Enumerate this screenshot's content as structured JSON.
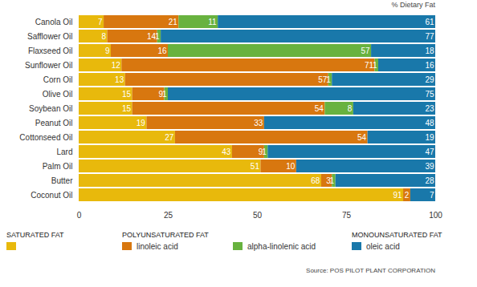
{
  "chart_data": {
    "type": "bar",
    "orientation": "horizontal",
    "stacked": true,
    "data_labels": true,
    "grid": false,
    "legend": "bottom",
    "subtitle": "% Dietary Fat",
    "caption": "Source: POS PILOT PLANT CORPORATION",
    "categories": [
      "Canola Oil",
      "Safflower Oil",
      "Flaxseed Oil",
      "Sunflower Oil",
      "Corn Oil",
      "Olive Oil",
      "Soybean Oil",
      "Peanut Oil",
      "Cottonseed Oil",
      "Lard",
      "Palm Oil",
      "Butter",
      "Coconut Oil"
    ],
    "series": [
      {
        "name": null,
        "group": "SATURATED FAT",
        "color": "#e8b90c",
        "values": [
          7,
          8,
          9,
          12,
          13,
          15,
          15,
          19,
          27,
          43,
          51,
          68,
          91
        ]
      },
      {
        "name": "linoleic acid",
        "group": "POLYUNSATURATED FAT",
        "color": "#d8770f",
        "values": [
          21,
          14,
          16,
          71,
          57,
          9,
          54,
          33,
          54,
          9,
          10,
          3,
          2
        ]
      },
      {
        "name": "alpha-linolenic acid",
        "group": null,
        "color": "#68b23f",
        "values": [
          11,
          1,
          57,
          1,
          1,
          1,
          8,
          null,
          null,
          1,
          null,
          1,
          null
        ]
      },
      {
        "name": "oleic acid",
        "group": "MONOUNSATURATED FAT",
        "color": "#1978aa",
        "values": [
          61,
          77,
          18,
          16,
          29,
          75,
          23,
          48,
          19,
          47,
          39,
          28,
          7
        ]
      }
    ],
    "xlim": [
      0,
      100
    ],
    "xticks": [
      0,
      25,
      50,
      75,
      100
    ]
  }
}
